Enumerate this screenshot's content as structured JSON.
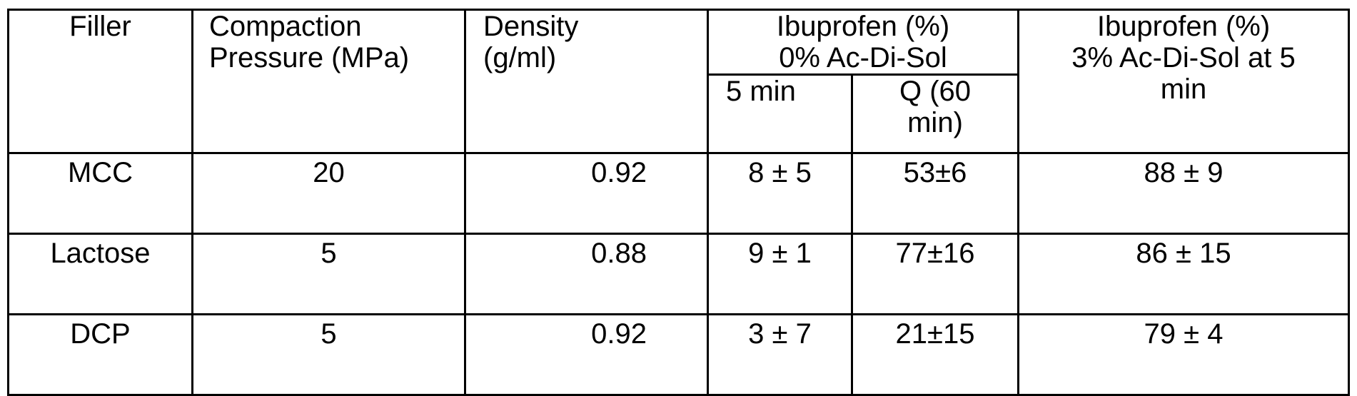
{
  "table": {
    "headers": {
      "filler": "Filler",
      "compaction_line1": "Compaction",
      "compaction_line2": "Pressure (MPa)",
      "density_line1": "Density",
      "density_line2": "(g/ml)",
      "ibu0_line1": "Ibuprofen (%)",
      "ibu0_line2": "0% Ac-Di-Sol",
      "sub_5min": "5 min",
      "sub_q_line1": "Q (60",
      "sub_q_line2": "min)",
      "ibu3_line1": "Ibuprofen (%)",
      "ibu3_line2": "3% Ac-Di-Sol at 5",
      "ibu3_line3": "min"
    },
    "rows": [
      {
        "filler": "MCC",
        "pressure": "20",
        "density": "0.92",
        "min5": "8 ± 5",
        "q60": "53±6",
        "ac3": "88 ± 9"
      },
      {
        "filler": "Lactose",
        "pressure": "5",
        "density": "0.88",
        "min5": "9 ± 1",
        "q60": "77±16",
        "ac3": "86 ± 15"
      },
      {
        "filler": "DCP",
        "pressure": "5",
        "density": "0.92",
        "min5": "3 ± 7",
        "q60": "21±15",
        "ac3": "79 ± 4"
      }
    ]
  }
}
